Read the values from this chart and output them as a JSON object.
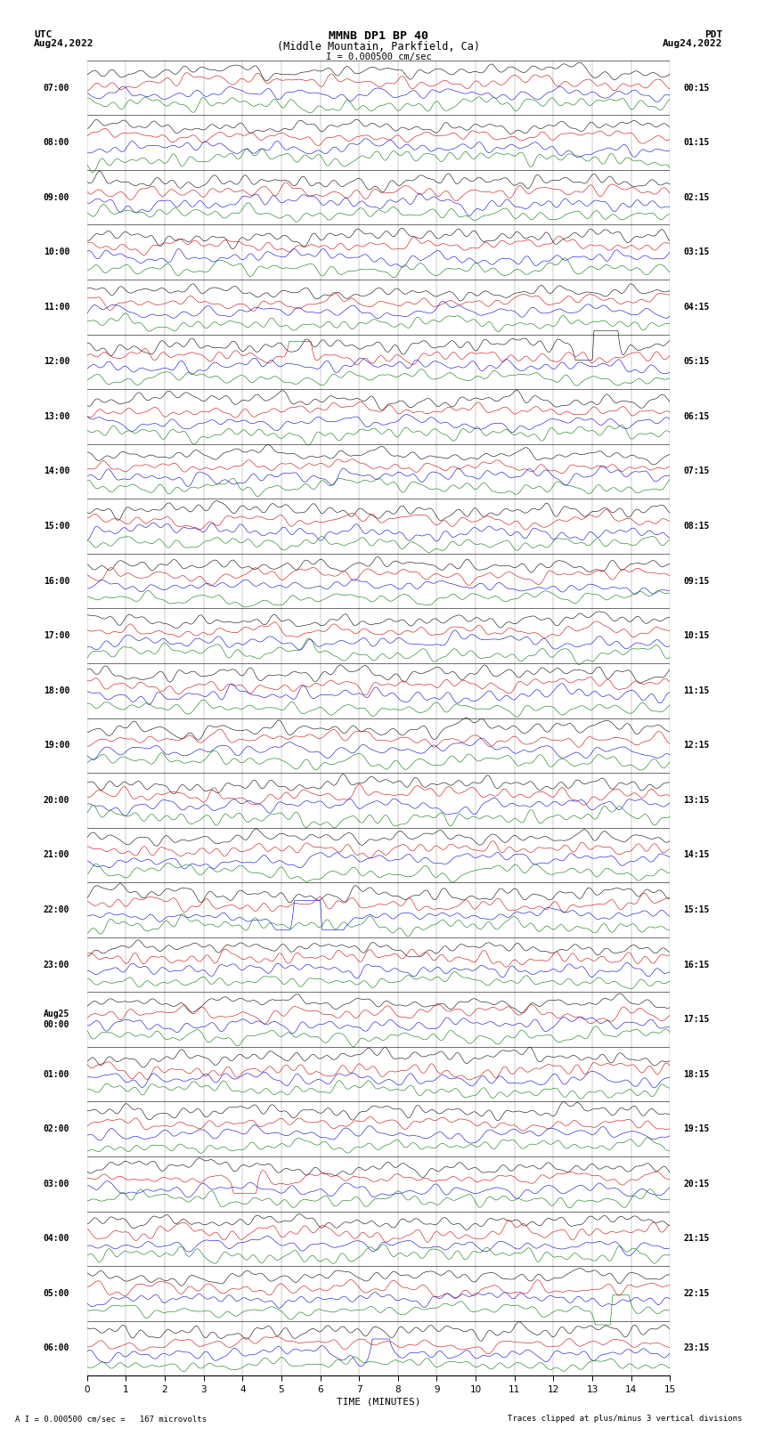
{
  "title_line1": "MMNB DP1 BP 40",
  "title_line2": "(Middle Mountain, Parkfield, Ca)",
  "scale_label": "I = 0.000500 cm/sec",
  "left_header_line1": "UTC",
  "left_header_line2": "Aug24,2022",
  "right_header_line1": "PDT",
  "right_header_line2": "Aug24,2022",
  "bottom_note_left": "A I = 0.000500 cm/sec =   167 microvolts",
  "bottom_note_right": "Traces clipped at plus/minus 3 vertical divisions",
  "xlabel": "TIME (MINUTES)",
  "bg_color": "#ffffff",
  "trace_colors": [
    "#000000",
    "#cc0000",
    "#0000cc",
    "#007700"
  ],
  "num_row_groups": 24,
  "traces_per_group": 4,
  "minutes_per_row": 15,
  "left_labels": [
    "07:00",
    "08:00",
    "09:00",
    "10:00",
    "11:00",
    "12:00",
    "13:00",
    "14:00",
    "15:00",
    "16:00",
    "17:00",
    "18:00",
    "19:00",
    "20:00",
    "21:00",
    "22:00",
    "23:00",
    "Aug25\n00:00",
    "01:00",
    "02:00",
    "03:00",
    "04:00",
    "05:00",
    "06:00"
  ],
  "right_labels": [
    "00:15",
    "01:15",
    "02:15",
    "03:15",
    "04:15",
    "05:15",
    "06:15",
    "07:15",
    "08:15",
    "09:15",
    "10:15",
    "11:15",
    "12:15",
    "13:15",
    "14:15",
    "15:15",
    "16:15",
    "17:15",
    "18:15",
    "19:15",
    "20:15",
    "21:15",
    "22:15",
    "23:15"
  ],
  "events": [
    {
      "group": 5,
      "trace": 0,
      "t_min": 13.2,
      "peak_amp": 3.5,
      "duration": 0.28,
      "color": "#000000",
      "note": "black event ~12:00 UTC"
    },
    {
      "group": 5,
      "trace": 1,
      "t_min": 5.5,
      "peak_amp": 1.8,
      "duration": 0.18,
      "color": "#cc0000",
      "note": "red burst ~12:00 UTC"
    },
    {
      "group": 15,
      "trace": 2,
      "t_min": 5.8,
      "peak_amp": 3.2,
      "duration": 0.35,
      "color": "#0000cc",
      "note": "blue event ~22:00 UTC"
    },
    {
      "group": 20,
      "trace": 1,
      "t_min": 4.1,
      "peak_amp": 2.0,
      "duration": 0.22,
      "color": "#cc0000",
      "note": "red event ~03:00 Aug25"
    },
    {
      "group": 22,
      "trace": 3,
      "t_min": 13.5,
      "peak_amp": 2.2,
      "duration": 0.22,
      "color": "#007700",
      "note": "green event ~05:00 Aug25"
    },
    {
      "group": 23,
      "trace": 2,
      "t_min": 7.5,
      "peak_amp": 1.2,
      "duration": 0.18,
      "color": "#0000cc",
      "note": "blue burst ~06:00 Aug25"
    }
  ]
}
